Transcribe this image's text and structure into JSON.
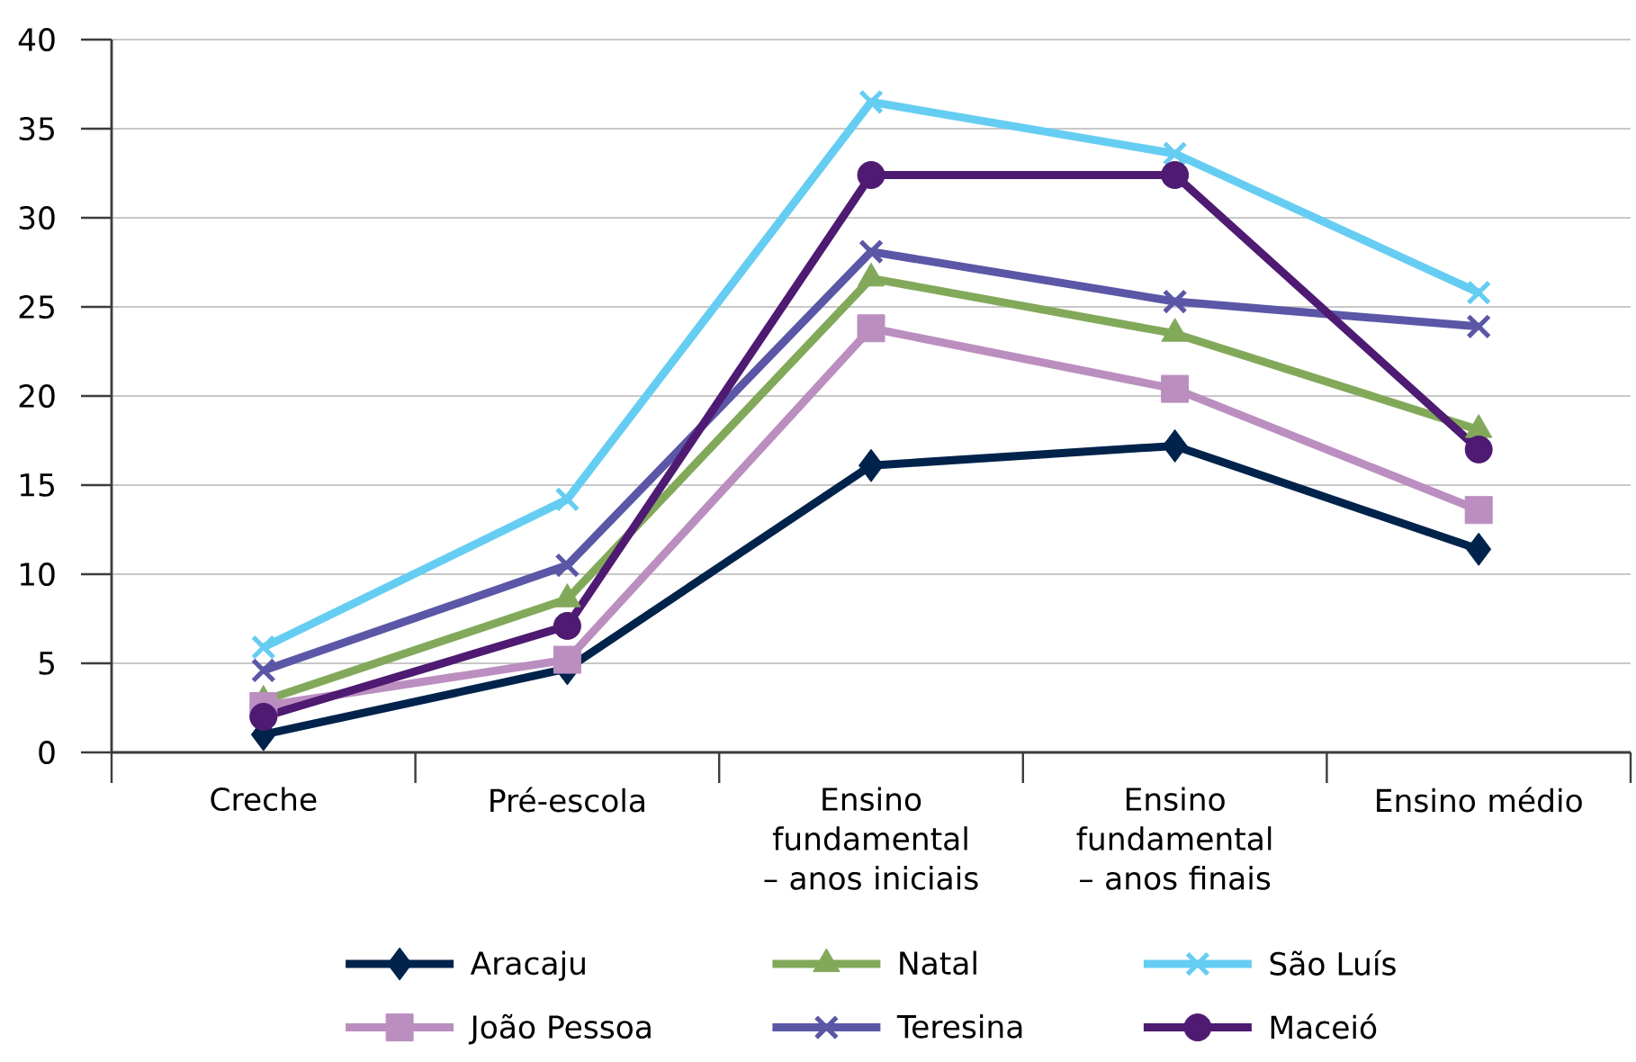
{
  "chart_data": {
    "type": "line",
    "categories": [
      "Creche",
      "Pré-escola",
      "Ensino fundamental – anos iniciais",
      "Ensino fundamental – anos finais",
      "Ensino médio"
    ],
    "series": [
      {
        "name": "Aracaju",
        "color": "#00234b",
        "marker": "diamond",
        "values": [
          1.0,
          4.7,
          16.1,
          17.2,
          11.4
        ]
      },
      {
        "name": "Natal",
        "color": "#82a95a",
        "marker": "triangle",
        "values": [
          2.9,
          8.6,
          26.6,
          23.5,
          18.1
        ]
      },
      {
        "name": "São Luís",
        "color": "#66cdf2",
        "marker": "cross",
        "values": [
          5.9,
          14.2,
          36.5,
          33.6,
          25.8
        ]
      },
      {
        "name": "João Pessoa",
        "color": "#bb8ec0",
        "marker": "square",
        "values": [
          2.6,
          5.2,
          23.8,
          20.4,
          13.6
        ]
      },
      {
        "name": "Teresina",
        "color": "#5b57a6",
        "marker": "cross",
        "values": [
          4.6,
          10.5,
          28.1,
          25.3,
          23.9
        ]
      },
      {
        "name": "Maceió",
        "color": "#4e1a72",
        "marker": "circle",
        "values": [
          2.0,
          7.1,
          32.4,
          32.4,
          17.0
        ]
      }
    ],
    "ylim": [
      0,
      40
    ],
    "yticks": [
      0,
      5,
      10,
      15,
      20,
      25,
      30,
      35,
      40
    ],
    "grid": "y",
    "legend": "bottom",
    "line_style": "solid"
  }
}
